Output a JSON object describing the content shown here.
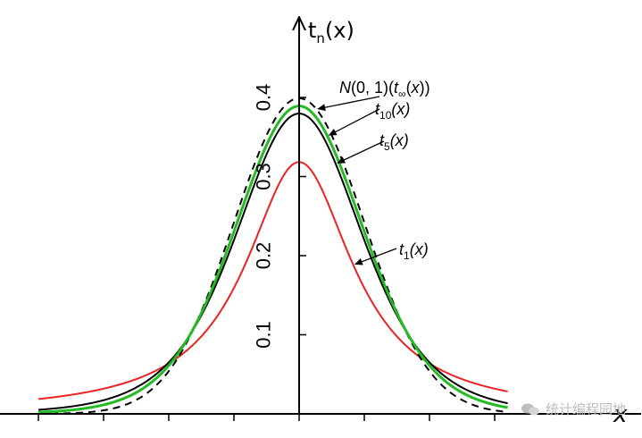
{
  "chart_data": {
    "type": "line",
    "title": "",
    "xlabel": "x",
    "ylabel": "t",
    "ylabel_sub": "n",
    "ylabel_suffix": "(x)",
    "xlim": [
      -4,
      3.2
    ],
    "ylim": [
      0,
      0.48
    ],
    "yticks": [
      {
        "value": 0.1,
        "label": "0.1"
      },
      {
        "value": 0.2,
        "label": "0.2"
      },
      {
        "value": 0.3,
        "label": "0.3"
      },
      {
        "value": 0.4,
        "label": "0.4"
      }
    ],
    "xticks": [
      -4,
      -3,
      -2,
      -1,
      0,
      1,
      2,
      3
    ],
    "series": [
      {
        "name": "N(0,1)(t∞(x))",
        "color": "#000000",
        "style": "dashed",
        "df": null,
        "peak": 0.399
      },
      {
        "name": "t10(x)",
        "color": "#22bb22",
        "style": "solid",
        "df": 10,
        "peak": 0.389
      },
      {
        "name": "t5(x)",
        "color": "#000000",
        "style": "solid",
        "df": 5,
        "peak": 0.38
      },
      {
        "name": "t1(x)",
        "color": "#ee2222",
        "style": "solid",
        "df": 1,
        "peak": 0.318
      }
    ],
    "annotations": [
      {
        "series": 0,
        "text": "N(0, 1)(t∞(x))",
        "at_x": 0.25
      },
      {
        "series": 1,
        "text": "t10(x)",
        "at_x": 0.42
      },
      {
        "series": 2,
        "text": "t5(x)",
        "at_x": 0.55
      },
      {
        "series": 3,
        "text": "t1(x)",
        "at_x": 0.82
      }
    ]
  },
  "watermark": {
    "text": "统计编程园地"
  }
}
